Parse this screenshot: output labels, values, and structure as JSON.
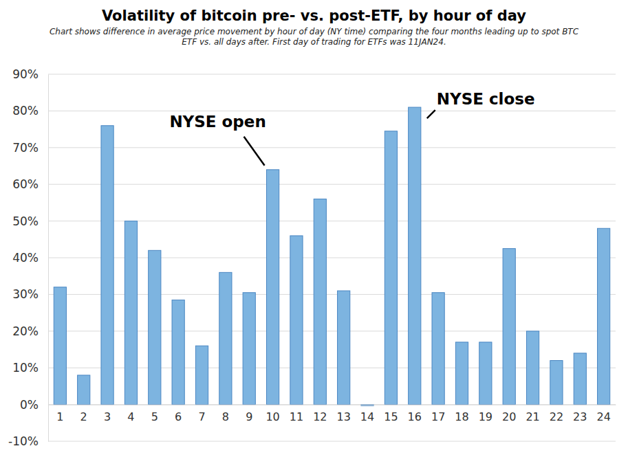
{
  "chart_data": {
    "type": "bar",
    "title": "Volatility of bitcoin pre- vs. post-ETF, by hour of day",
    "subtitle": "Chart shows difference in average price movement by hour of day (NY time) comparing the four months leading up to spot BTC ETF vs. all days after. First day of trading for ETFs was 11JAN24.",
    "categories": [
      "1",
      "2",
      "3",
      "4",
      "5",
      "6",
      "7",
      "8",
      "9",
      "10",
      "11",
      "12",
      "13",
      "14",
      "15",
      "16",
      "17",
      "18",
      "19",
      "20",
      "21",
      "22",
      "23",
      "24"
    ],
    "values": [
      32,
      8,
      76,
      50,
      42,
      28.5,
      16,
      36,
      30.5,
      64,
      46,
      56,
      31,
      -0.3,
      74.5,
      81,
      30.5,
      17,
      17,
      42.5,
      20,
      12,
      14,
      48
    ],
    "color": "#7db4e0",
    "ylim": [
      -10,
      90
    ],
    "yticks": [
      {
        "value": -10,
        "label": "-10%"
      },
      {
        "value": 0,
        "label": "0%"
      },
      {
        "value": 10,
        "label": "10%"
      },
      {
        "value": 20,
        "label": "20%"
      },
      {
        "value": 30,
        "label": "30%"
      },
      {
        "value": 40,
        "label": "40%"
      },
      {
        "value": 50,
        "label": "50%"
      },
      {
        "value": 60,
        "label": "60%"
      },
      {
        "value": 70,
        "label": "70%"
      },
      {
        "value": 80,
        "label": "80%"
      },
      {
        "value": 90,
        "label": "90%"
      }
    ],
    "grid": true,
    "annotations": [
      {
        "text": "NYSE open",
        "category": "10"
      },
      {
        "text": "NYSE close",
        "category": "16"
      }
    ]
  }
}
